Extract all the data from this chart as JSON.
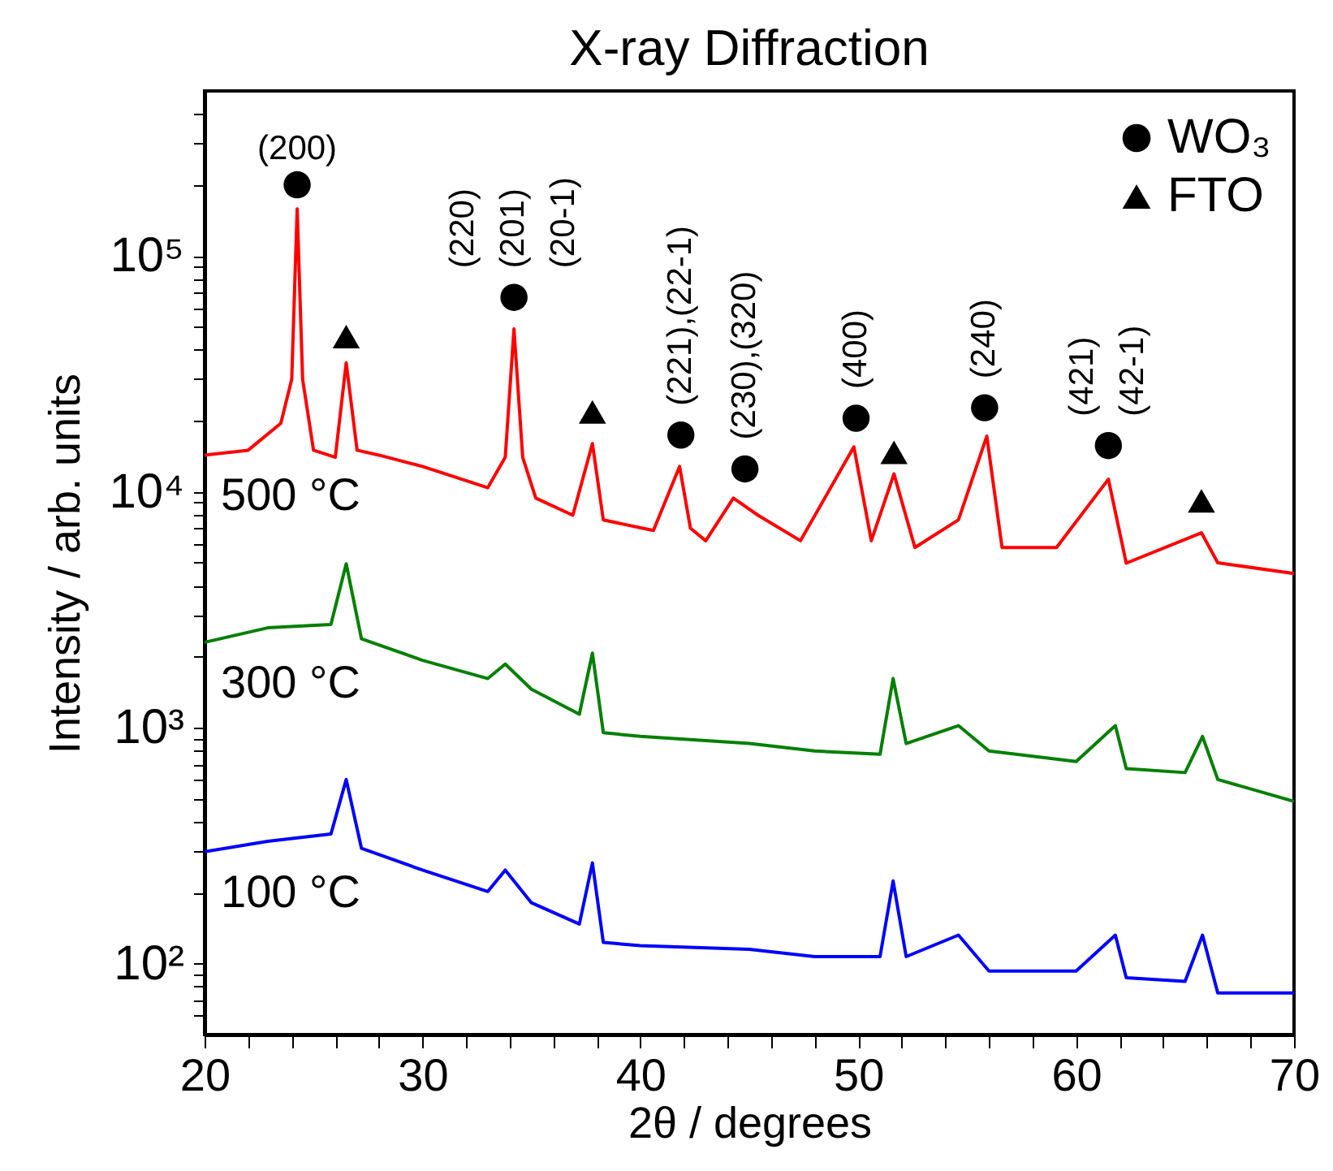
{
  "chart_data": {
    "type": "line",
    "title": "X-ray Diffraction",
    "xlabel": "2θ / degrees",
    "ylabel": "Intensity / arb. units",
    "log": "y",
    "legend": "top right",
    "xlim": [
      20,
      70
    ],
    "xticks": [
      20,
      {
        "value": 22,
        "label": null
      },
      {
        "value": 24,
        "label": null
      },
      {
        "value": 26,
        "label": null
      },
      {
        "value": 28,
        "label": null
      },
      30,
      {
        "value": 32,
        "label": null
      },
      {
        "value": 34,
        "label": null
      },
      {
        "value": 36,
        "label": null
      },
      {
        "value": 38,
        "label": null
      },
      40,
      {
        "value": 42,
        "label": null
      },
      {
        "value": 44,
        "label": null
      },
      {
        "value": 46,
        "label": null
      },
      {
        "value": 48,
        "label": null
      },
      50,
      {
        "value": 52,
        "label": null
      },
      {
        "value": 54,
        "label": null
      },
      {
        "value": 56,
        "label": null
      },
      {
        "value": 58,
        "label": null
      },
      60,
      {
        "value": 62,
        "label": null
      },
      {
        "value": 64,
        "label": null
      },
      {
        "value": 66,
        "label": null
      },
      {
        "value": 68,
        "label": null
      },
      70
    ],
    "ylim": [
      50,
      500000
    ],
    "yticks": [
      {
        "value": 60,
        "label": null
      },
      {
        "value": 70,
        "label": null
      },
      {
        "value": 80,
        "label": null
      },
      {
        "value": 90,
        "label": null
      },
      {
        "value": 100,
        "label": "10²"
      },
      {
        "value": 200,
        "label": null
      },
      {
        "value": 300,
        "label": null
      },
      {
        "value": 400,
        "label": null
      },
      {
        "value": 500,
        "label": null
      },
      {
        "value": 600,
        "label": null
      },
      {
        "value": 700,
        "label": null
      },
      {
        "value": 800,
        "label": null
      },
      {
        "value": 900,
        "label": null
      },
      {
        "value": 1000,
        "label": "10³"
      },
      {
        "value": 2000,
        "label": null
      },
      {
        "value": 3000,
        "label": null
      },
      {
        "value": 4000,
        "label": null
      },
      {
        "value": 5000,
        "label": null
      },
      {
        "value": 6000,
        "label": null
      },
      {
        "value": 7000,
        "label": null
      },
      {
        "value": 8000,
        "label": null
      },
      {
        "value": 9000,
        "label": null
      },
      {
        "value": 10000,
        "label": "10⁴"
      },
      {
        "value": 20000,
        "label": null
      },
      {
        "value": 30000,
        "label": null
      },
      {
        "value": 40000,
        "label": null
      },
      {
        "value": 50000,
        "label": null
      },
      {
        "value": 60000,
        "label": null
      },
      {
        "value": 70000,
        "label": null
      },
      {
        "value": 80000,
        "label": null
      },
      {
        "value": 90000,
        "label": null
      },
      {
        "value": 100000,
        "label": "10⁵"
      },
      {
        "value": 200000,
        "label": null
      },
      {
        "value": 300000,
        "label": null
      },
      {
        "value": 400000,
        "label": null
      }
    ],
    "series": [
      {
        "name": "500 °C",
        "color": "#ff0000",
        "x": [
          20,
          22,
          23.5,
          24.0,
          24.25,
          24.5,
          25,
          26,
          26.5,
          27,
          28,
          30,
          33,
          33.8,
          34.2,
          34.6,
          35.2,
          36.9,
          37.8,
          38.3,
          40.6,
          41.8,
          42.3,
          43,
          44.27,
          45.4,
          47.35,
          49.8,
          50.6,
          51.64,
          52.6,
          54.6,
          55.9,
          56.6,
          59.1,
          61.48,
          62.3,
          65.75,
          66.5,
          70
        ],
        "values": [
          14300,
          15000,
          19500,
          30000,
          158000,
          30000,
          15000,
          14000,
          35200,
          15000,
          14300,
          12800,
          10400,
          14000,
          49000,
          14000,
          9400,
          7950,
          16000,
          7600,
          6850,
          12800,
          7000,
          6200,
          9400,
          7950,
          6200,
          15500,
          6200,
          11900,
          5800,
          7600,
          17200,
          5800,
          5800,
          11300,
          4980,
          6700,
          5000,
          4500
        ]
      },
      {
        "name": "300 °C",
        "color": "#007f00",
        "x": [
          20,
          22.9,
          25.8,
          26.5,
          27.2,
          30,
          33,
          33.8,
          35,
          37.2,
          37.8,
          38.3,
          40,
          45,
          48,
          51,
          51.6,
          52.2,
          54.6,
          56,
          60,
          61.8,
          62.3,
          65,
          65.8,
          66.5,
          70
        ],
        "values": [
          2300,
          2650,
          2740,
          4950,
          2380,
          1930,
          1615,
          1860,
          1455,
          1140,
          2070,
          952,
          918,
          857,
          796,
          771,
          1615,
          857,
          1020,
          796,
          718,
          1020,
          670,
          645,
          918,
          603,
          487
        ]
      },
      {
        "name": "100 °C",
        "color": "#0000ff",
        "x": [
          20,
          22.9,
          25.8,
          26.5,
          27.2,
          30,
          33,
          33.8,
          35,
          37.2,
          37.8,
          38.3,
          40,
          45,
          48,
          51,
          51.6,
          52.2,
          54.6,
          56,
          60,
          61.8,
          62.3,
          65,
          65.8,
          66.5,
          70
        ],
        "values": [
          298,
          330,
          354,
          603,
          308,
          249,
          202,
          249,
          181,
          147,
          267,
          123,
          119,
          115,
          107,
          107,
          224,
          107,
          132,
          93,
          93,
          132,
          87,
          84,
          132,
          75,
          75
        ]
      },
      {
        "name": "WO₃",
        "type": "scatter",
        "marker": "circle",
        "color": "#000000",
        "x": [
          24.25,
          34.2,
          41.86,
          44.8,
          49.9,
          55.8,
          61.48
        ],
        "values": [
          200000,
          66700,
          17400,
          12500,
          20500,
          22700,
          15700
        ]
      },
      {
        "name": "FTO",
        "type": "scatter",
        "marker": "triangle",
        "color": "#000000",
        "x": [
          26.5,
          37.8,
          51.64,
          65.75
        ],
        "values": [
          45500,
          21800,
          14700,
          9150
        ]
      }
    ],
    "annotations": [
      {
        "text": "(200)",
        "x": 24.25,
        "y": 200000
      },
      {
        "text": "(220)",
        "x": 34.2,
        "y": 66700
      },
      {
        "text": "(201)",
        "x": 34.2,
        "y": 66700
      },
      {
        "text": "(20-1)",
        "x": 34.2,
        "y": 66700
      },
      {
        "text": "(221),(22-1)",
        "x": 41.86,
        "y": 17400
      },
      {
        "text": "(230),(320)",
        "x": 44.8,
        "y": 12500
      },
      {
        "text": "(400)",
        "x": 49.9,
        "y": 20500
      },
      {
        "text": "(240)",
        "x": 55.8,
        "y": 22700
      },
      {
        "text": "(421)",
        "x": 61.48,
        "y": 15700
      },
      {
        "text": "(42-1)",
        "x": 61.48,
        "y": 15700
      }
    ]
  }
}
